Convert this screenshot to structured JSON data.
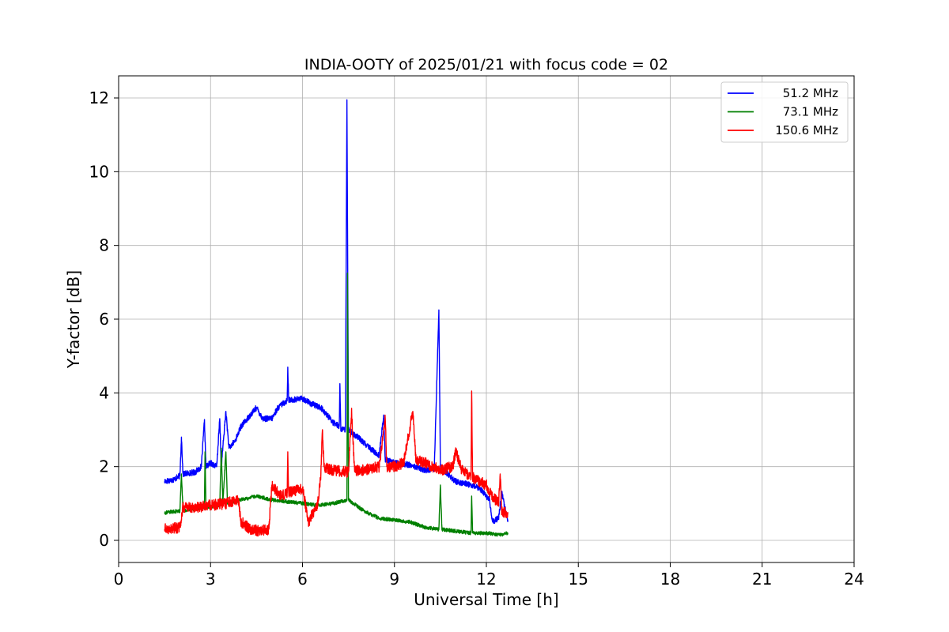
{
  "chart_data": {
    "type": "line",
    "title": "INDIA-OOTY of 2025/01/21 with focus code = 02",
    "xlabel": "Universal Time [h]",
    "ylabel": "Y-factor [dB]",
    "xlim": [
      0,
      24
    ],
    "ylim": [
      -0.6,
      12.6
    ],
    "xticks": [
      "0",
      "3",
      "6",
      "9",
      "12",
      "15",
      "18",
      "21",
      "24"
    ],
    "yticks": [
      "0",
      "2",
      "4",
      "6",
      "8",
      "10",
      "12"
    ],
    "grid": true,
    "legend_position": "top-right",
    "series": [
      {
        "name": " 51.2 MHz",
        "color": "#0000ff",
        "noise": 0.08,
        "points": [
          [
            1.5,
            1.6
          ],
          [
            1.8,
            1.65
          ],
          [
            2.0,
            1.75
          ],
          [
            2.05,
            2.8
          ],
          [
            2.1,
            1.8
          ],
          [
            2.5,
            1.85
          ],
          [
            2.7,
            2.0
          ],
          [
            2.8,
            3.25
          ],
          [
            2.85,
            2.0
          ],
          [
            3.0,
            2.1
          ],
          [
            3.2,
            2.0
          ],
          [
            3.3,
            3.3
          ],
          [
            3.35,
            2.0
          ],
          [
            3.5,
            3.5
          ],
          [
            3.6,
            2.5
          ],
          [
            3.8,
            2.7
          ],
          [
            4.0,
            3.1
          ],
          [
            4.3,
            3.4
          ],
          [
            4.5,
            3.6
          ],
          [
            4.7,
            3.3
          ],
          [
            5.0,
            3.3
          ],
          [
            5.2,
            3.6
          ],
          [
            5.5,
            3.8
          ],
          [
            5.52,
            4.7
          ],
          [
            5.55,
            3.8
          ],
          [
            6.0,
            3.85
          ],
          [
            6.3,
            3.7
          ],
          [
            6.6,
            3.6
          ],
          [
            7.0,
            3.2
          ],
          [
            7.2,
            3.1
          ],
          [
            7.22,
            4.25
          ],
          [
            7.25,
            3.0
          ],
          [
            7.4,
            3.0
          ],
          [
            7.45,
            11.95
          ],
          [
            7.5,
            3.0
          ],
          [
            7.8,
            2.8
          ],
          [
            8.2,
            2.5
          ],
          [
            8.5,
            2.3
          ],
          [
            8.65,
            3.4
          ],
          [
            8.7,
            2.2
          ],
          [
            9.0,
            2.1
          ],
          [
            9.5,
            2.05
          ],
          [
            10.0,
            1.9
          ],
          [
            10.3,
            1.95
          ],
          [
            10.45,
            6.25
          ],
          [
            10.5,
            2.0
          ],
          [
            10.8,
            1.75
          ],
          [
            11.0,
            1.6
          ],
          [
            11.5,
            1.5
          ],
          [
            11.8,
            1.4
          ],
          [
            12.1,
            1.1
          ],
          [
            12.2,
            0.5
          ],
          [
            12.4,
            0.6
          ],
          [
            12.5,
            1.3
          ],
          [
            12.7,
            0.5
          ]
        ]
      },
      {
        "name": " 73.1 MHz",
        "color": "#008000",
        "noise": 0.05,
        "points": [
          [
            1.5,
            0.75
          ],
          [
            2.0,
            0.8
          ],
          [
            2.05,
            1.8
          ],
          [
            2.1,
            0.8
          ],
          [
            2.5,
            0.85
          ],
          [
            2.8,
            0.9
          ],
          [
            2.82,
            2.4
          ],
          [
            2.85,
            0.9
          ],
          [
            3.3,
            0.95
          ],
          [
            3.35,
            2.5
          ],
          [
            3.4,
            1.0
          ],
          [
            3.5,
            2.4
          ],
          [
            3.55,
            1.0
          ],
          [
            4.0,
            1.1
          ],
          [
            4.5,
            1.2
          ],
          [
            5.0,
            1.1
          ],
          [
            5.5,
            1.05
          ],
          [
            6.0,
            1.0
          ],
          [
            6.5,
            0.95
          ],
          [
            7.0,
            1.0
          ],
          [
            7.45,
            1.1
          ],
          [
            7.47,
            7.25
          ],
          [
            7.5,
            1.1
          ],
          [
            8.0,
            0.8
          ],
          [
            8.5,
            0.6
          ],
          [
            9.0,
            0.55
          ],
          [
            9.5,
            0.5
          ],
          [
            10.0,
            0.35
          ],
          [
            10.45,
            0.3
          ],
          [
            10.5,
            1.5
          ],
          [
            10.55,
            0.3
          ],
          [
            11.0,
            0.25
          ],
          [
            11.5,
            0.2
          ],
          [
            11.52,
            1.2
          ],
          [
            11.55,
            0.2
          ],
          [
            12.0,
            0.2
          ],
          [
            12.5,
            0.15
          ],
          [
            12.7,
            0.2
          ]
        ]
      },
      {
        "name": "150.6 MHz",
        "color": "#ff0000",
        "noise": 0.15,
        "points": [
          [
            1.5,
            0.3
          ],
          [
            2.0,
            0.35
          ],
          [
            2.1,
            0.9
          ],
          [
            2.5,
            0.9
          ],
          [
            3.0,
            0.95
          ],
          [
            3.5,
            1.0
          ],
          [
            3.9,
            1.1
          ],
          [
            4.0,
            0.5
          ],
          [
            4.3,
            0.3
          ],
          [
            4.6,
            0.25
          ],
          [
            4.9,
            0.3
          ],
          [
            5.0,
            1.5
          ],
          [
            5.3,
            1.2
          ],
          [
            5.5,
            1.3
          ],
          [
            5.52,
            2.4
          ],
          [
            5.55,
            1.3
          ],
          [
            6.0,
            1.4
          ],
          [
            6.2,
            0.5
          ],
          [
            6.5,
            1.0
          ],
          [
            6.6,
            1.8
          ],
          [
            6.65,
            3.0
          ],
          [
            6.7,
            2.0
          ],
          [
            7.0,
            1.9
          ],
          [
            7.5,
            1.85
          ],
          [
            7.6,
            3.5
          ],
          [
            7.7,
            1.9
          ],
          [
            8.0,
            1.9
          ],
          [
            8.5,
            2.0
          ],
          [
            8.7,
            3.3
          ],
          [
            8.75,
            2.0
          ],
          [
            9.0,
            2.0
          ],
          [
            9.3,
            2.1
          ],
          [
            9.6,
            3.5
          ],
          [
            9.7,
            2.2
          ],
          [
            10.0,
            2.1
          ],
          [
            10.5,
            1.9
          ],
          [
            10.9,
            2.0
          ],
          [
            11.0,
            2.4
          ],
          [
            11.2,
            1.9
          ],
          [
            11.5,
            1.7
          ],
          [
            11.52,
            4.05
          ],
          [
            11.55,
            1.7
          ],
          [
            12.0,
            1.5
          ],
          [
            12.2,
            1.2
          ],
          [
            12.4,
            1.0
          ],
          [
            12.45,
            1.8
          ],
          [
            12.5,
            0.8
          ],
          [
            12.7,
            0.7
          ]
        ]
      }
    ]
  }
}
